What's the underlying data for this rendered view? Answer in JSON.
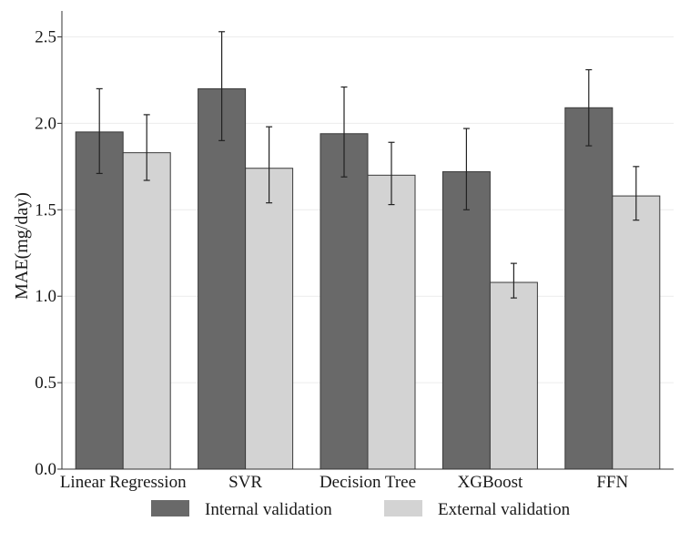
{
  "chart_data": {
    "type": "bar",
    "title": "",
    "xlabel": "",
    "ylabel": "MAE(mg/day)",
    "ylim": [
      0,
      2.65
    ],
    "yticks": [
      "0.0",
      "0.5",
      "1.0",
      "1.5",
      "2.0",
      "2.5"
    ],
    "grid": true,
    "legend_position": "bottom",
    "categories": [
      "Linear Regression",
      "SVR",
      "Decision Tree",
      "XGBoost",
      "FFN"
    ],
    "series": [
      {
        "name": "Internal validation",
        "color": "#696969",
        "values": [
          1.95,
          2.2,
          1.94,
          1.72,
          2.09
        ],
        "err_low": [
          1.71,
          1.9,
          1.69,
          1.5,
          1.87
        ],
        "err_high": [
          2.2,
          2.53,
          2.21,
          1.97,
          2.31
        ]
      },
      {
        "name": "External validation",
        "color": "#d3d3d3",
        "values": [
          1.83,
          1.74,
          1.7,
          1.08,
          1.58
        ],
        "err_low": [
          1.67,
          1.54,
          1.53,
          0.99,
          1.44
        ],
        "err_high": [
          2.05,
          1.98,
          1.89,
          1.19,
          1.75
        ]
      }
    ]
  }
}
